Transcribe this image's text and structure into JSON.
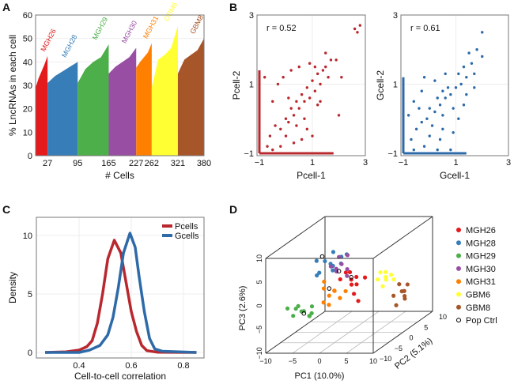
{
  "panels": {
    "a": "A",
    "b": "B",
    "c": "C",
    "d": "D"
  },
  "colors": {
    "MGH26": "#e41a1c",
    "MGH28": "#377eb8",
    "MGH29": "#4daf4a",
    "MGH30": "#984ea3",
    "MGH31": "#ff7f00",
    "GBM6": "#ffff33",
    "GBM8": "#a65628",
    "pcell": "#b8282e",
    "gcell": "#2e6aa8"
  },
  "chart_data": [
    {
      "type": "bar",
      "panel": "A",
      "xlabel": "# Cells",
      "ylabel": "% LncRNAs in each cell",
      "ylim": [
        0,
        60
      ],
      "xlim": [
        0,
        380
      ],
      "yticks": [
        0,
        10,
        20,
        30,
        40,
        50,
        60
      ],
      "xticks": [
        27,
        95,
        165,
        227,
        262,
        321,
        380
      ],
      "grid": true,
      "note_sorted_profile": "values per group sorted ascending; profile = start, quartiles, end",
      "groups": [
        {
          "name": "MGH26",
          "start": 0,
          "end": 27,
          "profile": [
            29,
            33,
            36,
            39,
            42.5
          ]
        },
        {
          "name": "MGH28",
          "start": 27,
          "end": 95,
          "profile": [
            31,
            34,
            36,
            38,
            40
          ]
        },
        {
          "name": "MGH29",
          "start": 95,
          "end": 165,
          "profile": [
            31,
            37,
            40,
            42,
            47.5
          ]
        },
        {
          "name": "MGH30",
          "start": 165,
          "end": 227,
          "profile": [
            35,
            38,
            40,
            42,
            46
          ]
        },
        {
          "name": "MGH31",
          "start": 227,
          "end": 262,
          "profile": [
            37.5,
            40,
            42,
            44,
            48
          ]
        },
        {
          "name": "GBM6",
          "start": 262,
          "end": 321,
          "profile": [
            29,
            41,
            43,
            46,
            55.5
          ]
        },
        {
          "name": "GBM8",
          "start": 321,
          "end": 380,
          "profile": [
            35,
            41,
            43,
            45,
            50
          ]
        }
      ]
    },
    {
      "type": "scatter",
      "panel": "B",
      "xlabel": "Pcell-1",
      "ylabel": "Pcell-2",
      "annotation": "r = 0.52",
      "xlim": [
        -1,
        3
      ],
      "ylim": [
        -1,
        3
      ],
      "xticks": [
        -1,
        1,
        3
      ],
      "yticks": [
        -1,
        1,
        3
      ],
      "axis_pileup": {
        "x_at_min_y_range": [
          -1,
          1.4
        ],
        "y_at_min_x_range": [
          -1,
          1.8
        ]
      },
      "points": [
        [
          -0.6,
          -0.5
        ],
        [
          -0.4,
          -0.2
        ],
        [
          -0.2,
          -0.3
        ],
        [
          0,
          0
        ],
        [
          0.1,
          -0.1
        ],
        [
          0.2,
          0.3
        ],
        [
          0.3,
          0.1
        ],
        [
          0.4,
          0.5
        ],
        [
          0.5,
          0.3
        ],
        [
          0.6,
          0.7
        ],
        [
          0.7,
          0.5
        ],
        [
          0.8,
          0.9
        ],
        [
          0.9,
          0.6
        ],
        [
          1,
          1.1
        ],
        [
          1.1,
          0.8
        ],
        [
          1.2,
          1.3
        ],
        [
          1.3,
          1.0
        ],
        [
          1.4,
          1.4
        ],
        [
          1.5,
          1.5
        ],
        [
          1.6,
          1.2
        ],
        [
          1.7,
          1.7
        ],
        [
          2.1,
          1.2
        ],
        [
          2.0,
          0.1
        ],
        [
          2.6,
          2.6
        ],
        [
          2.7,
          2.5
        ],
        [
          2.8,
          2.7
        ],
        [
          -0.5,
          0.5
        ],
        [
          -0.3,
          1
        ],
        [
          -0.1,
          1.2
        ],
        [
          0.2,
          1.4
        ],
        [
          0.5,
          1.5
        ],
        [
          -0.7,
          -0.8
        ],
        [
          -0.2,
          -0.8
        ],
        [
          0.3,
          -0.7
        ],
        [
          0.6,
          -0.6
        ],
        [
          0.8,
          -0.3
        ],
        [
          1.0,
          -0.5
        ],
        [
          -0.8,
          1.2
        ],
        [
          0.1,
          0.6
        ],
        [
          0.7,
          0.0
        ],
        [
          1.2,
          0.4
        ],
        [
          1.5,
          1.9
        ],
        [
          1.9,
          1.7
        ],
        [
          0.9,
          1.6
        ],
        [
          -0.5,
          -0.9
        ],
        [
          0.0,
          -0.5
        ],
        [
          0.4,
          -0.2
        ],
        [
          1.1,
          1.5
        ],
        [
          1.3,
          0.5
        ]
      ]
    },
    {
      "type": "scatter",
      "panel": "B",
      "xlabel": "Gcell-1",
      "ylabel": "Gcell-2",
      "annotation": "r = 0.61",
      "xlim": [
        -1,
        3
      ],
      "ylim": [
        -1,
        3
      ],
      "xticks": [
        -1,
        1,
        3
      ],
      "yticks": [
        -1,
        1,
        3
      ],
      "axis_pileup": {
        "x_at_min_y_range": [
          -1,
          1.2
        ],
        "y_at_min_x_range": [
          -1,
          1.4
        ]
      },
      "points": [
        [
          -0.7,
          -0.6
        ],
        [
          -0.5,
          -0.3
        ],
        [
          -0.3,
          -0.1
        ],
        [
          -0.1,
          0.0
        ],
        [
          0,
          0.3
        ],
        [
          0.2,
          0.2
        ],
        [
          0.3,
          0.6
        ],
        [
          0.4,
          0.4
        ],
        [
          0.5,
          0.8
        ],
        [
          0.6,
          0.6
        ],
        [
          0.7,
          0.9
        ],
        [
          0.8,
          0.7
        ],
        [
          1,
          0.9
        ],
        [
          1.1,
          1.3
        ],
        [
          1.2,
          1.0
        ],
        [
          1.3,
          1.5
        ],
        [
          1.4,
          1.2
        ],
        [
          1.6,
          1.6
        ],
        [
          1.7,
          1.3
        ],
        [
          1.8,
          2.0
        ],
        [
          2.0,
          1.8
        ],
        [
          2.0,
          2.5
        ],
        [
          1.1,
          0.0
        ],
        [
          1.3,
          0.4
        ],
        [
          0.9,
          -0.4
        ],
        [
          0.8,
          -0.9
        ],
        [
          -0.8,
          0.1
        ],
        [
          -0.6,
          0.5
        ],
        [
          -0.3,
          0.8
        ],
        [
          -0.2,
          1.2
        ],
        [
          0.2,
          1.1
        ],
        [
          0.4,
          -0.6
        ],
        [
          -0.2,
          -0.8
        ],
        [
          0.0,
          -0.5
        ],
        [
          -0.6,
          -0.9
        ],
        [
          0.5,
          -0.3
        ],
        [
          1.4,
          0.7
        ],
        [
          1.5,
          1.9
        ],
        [
          0.6,
          1.3
        ],
        [
          0.3,
          -0.9
        ],
        [
          0.5,
          0.1
        ],
        [
          -0.4,
          0.3
        ],
        [
          1.7,
          0.9
        ],
        [
          0.9,
          0.3
        ],
        [
          0.1,
          -0.2
        ]
      ]
    },
    {
      "type": "line",
      "panel": "C",
      "xlabel": "Cell-to-cell correlation",
      "ylabel": "Density",
      "xticks": [
        0.4,
        0.6,
        0.8
      ],
      "yticks": [
        0,
        5,
        10
      ],
      "legend": "top-right",
      "series": [
        {
          "name": "Pcells",
          "x": [
            0.27,
            0.35,
            0.4,
            0.43,
            0.45,
            0.47,
            0.49,
            0.51,
            0.535,
            0.56,
            0.58,
            0.6,
            0.62,
            0.64,
            0.66,
            0.7,
            0.85
          ],
          "y": [
            0,
            0.05,
            0.2,
            0.5,
            1,
            2.5,
            5,
            8,
            9.6,
            8.5,
            6,
            3.5,
            1.8,
            0.6,
            0.15,
            0.02,
            0
          ]
        },
        {
          "name": "Gcells",
          "x": [
            0.27,
            0.4,
            0.44,
            0.48,
            0.51,
            0.53,
            0.55,
            0.57,
            0.595,
            0.615,
            0.63,
            0.65,
            0.67,
            0.69,
            0.72,
            0.85
          ],
          "y": [
            0,
            0,
            0.2,
            0.6,
            1.5,
            3,
            5.5,
            8.5,
            10.2,
            9,
            6.5,
            3.5,
            1.2,
            0.3,
            0.1,
            0
          ]
        }
      ]
    },
    {
      "type": "scatter",
      "panel": "D",
      "xlabel": "PC1 (10.0%)",
      "ylabel": "PC2 (5.1%)",
      "zlabel": "PC3 (2.6%)",
      "ticks": [
        -10,
        -5,
        0,
        5,
        10
      ],
      "legend": "right",
      "series": [
        {
          "name": "MGH26",
          "points": [
            [
              1.5,
              -2,
              2
            ],
            [
              0.5,
              -2,
              3.5
            ],
            [
              2.5,
              -2,
              1
            ],
            [
              3,
              -3,
              3
            ],
            [
              1,
              -1,
              0.5
            ],
            [
              2,
              -2,
              -1
            ],
            [
              3.5,
              -1,
              2
            ],
            [
              0,
              -3,
              2.5
            ],
            [
              2.8,
              -2,
              -2.5
            ],
            [
              1.8,
              -3,
              4
            ]
          ]
        },
        {
          "name": "MGH28",
          "points": [
            [
              -3,
              0,
              4
            ],
            [
              -4.5,
              0,
              5
            ],
            [
              -2,
              1,
              5.5
            ],
            [
              -5,
              -1,
              3
            ],
            [
              -3.5,
              1,
              6.5
            ],
            [
              -1.5,
              0,
              4.5
            ],
            [
              -6,
              0,
              2
            ],
            [
              -2.5,
              -1,
              3.5
            ],
            [
              -4,
              1,
              4
            ],
            [
              -1,
              1,
              6
            ],
            [
              -5.5,
              -1,
              5.5
            ]
          ]
        },
        {
          "name": "MGH29",
          "points": [
            [
              -4,
              -8,
              -2
            ],
            [
              -5.5,
              -8,
              -1.5
            ],
            [
              -3,
              -8,
              -3
            ],
            [
              -6,
              -8,
              -3
            ],
            [
              -2.5,
              -8,
              -1
            ],
            [
              -4.5,
              -9,
              -0.5
            ],
            [
              -3.5,
              -7,
              -3.5
            ],
            [
              -5,
              -7,
              -2.5
            ],
            [
              -2,
              -9,
              -2
            ],
            [
              -6.5,
              -9,
              -1
            ]
          ]
        },
        {
          "name": "MGH30",
          "points": [
            [
              -3.5,
              2,
              2.5
            ],
            [
              -2.5,
              2,
              3.5
            ],
            [
              -4,
              3,
              1.5
            ],
            [
              -2,
              3,
              2
            ],
            [
              -3,
              2,
              5
            ],
            [
              -4.5,
              2,
              3
            ],
            [
              -1.5,
              2,
              1
            ],
            [
              -2.5,
              4,
              4.5
            ]
          ]
        },
        {
          "name": "MGH31",
          "points": [
            [
              -1.5,
              -4,
              -0.5
            ],
            [
              -0.5,
              -4,
              0.5
            ],
            [
              -2.5,
              -4,
              1
            ],
            [
              0.5,
              -4,
              -1
            ],
            [
              -1,
              -5,
              -2
            ],
            [
              -3,
              -3,
              2
            ],
            [
              1,
              -3,
              0
            ],
            [
              -2,
              -5,
              -1.5
            ],
            [
              0,
              -5,
              1
            ]
          ]
        },
        {
          "name": "GBM6",
          "points": [
            [
              3.5,
              6,
              -1
            ],
            [
              2.5,
              6,
              0
            ],
            [
              4.5,
              6,
              -0.5
            ],
            [
              3,
              7,
              -2
            ],
            [
              4,
              5,
              0.5
            ],
            [
              2,
              6,
              -1.5
            ],
            [
              5,
              6,
              -1.5
            ],
            [
              3.5,
              5,
              -2.5
            ]
          ]
        },
        {
          "name": "GBM8",
          "points": [
            [
              6.5,
              6,
              -4
            ],
            [
              6,
              6,
              -2.5
            ],
            [
              7,
              6,
              -5
            ],
            [
              6.5,
              7,
              -6
            ],
            [
              5.5,
              5,
              -4.5
            ],
            [
              7.5,
              5,
              -3.5
            ],
            [
              6,
              5,
              -6.5
            ],
            [
              7,
              7,
              -3
            ]
          ]
        },
        {
          "name": "Pop Ctrl",
          "points": [
            [
              -4,
              -8,
              -2.5
            ],
            [
              -1.5,
              -4,
              1
            ],
            [
              -3,
              2,
              2
            ],
            [
              1.5,
              -2,
              2.5
            ],
            [
              -5,
              0,
              6
            ]
          ]
        }
      ]
    }
  ]
}
